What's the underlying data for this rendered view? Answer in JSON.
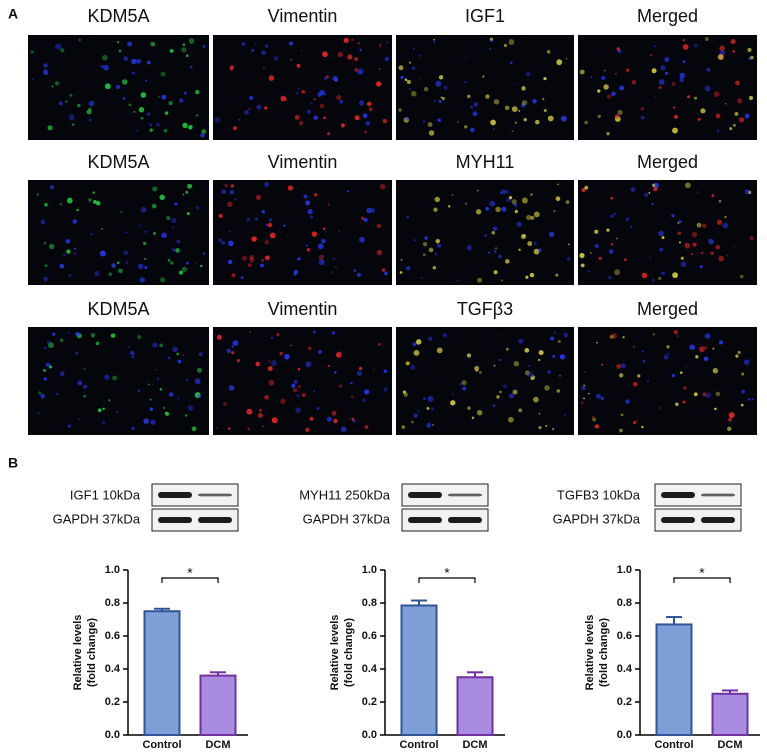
{
  "panel_labels": [
    "A",
    "B"
  ],
  "immunofluorescence": {
    "rows": [
      [
        "KDM5A",
        "Vimentin",
        "IGF1",
        "Merged"
      ],
      [
        "KDM5A",
        "Vimentin",
        "MYH11",
        "Merged"
      ],
      [
        "KDM5A",
        "Vimentin",
        "TGFβ3",
        "Merged"
      ]
    ]
  },
  "blots": [
    {
      "target": "IGF1 10kDa",
      "control": "GAPDH 37kDa"
    },
    {
      "target": "MYH11 250kDa",
      "control": "GAPDH 37kDa"
    },
    {
      "target": "TGFB3 10kDa",
      "control": "GAPDH  37kDa"
    }
  ],
  "chart_data": [
    {
      "type": "bar",
      "ylabel": [
        "Relative levels",
        "(fold change)"
      ],
      "categories": [
        "Control",
        "DCM"
      ],
      "values": [
        0.75,
        0.36
      ],
      "errors": [
        0.015,
        0.02
      ],
      "colors": [
        "#7f9fd9",
        "#a98be0"
      ],
      "edge_colors": [
        "#2f5597",
        "#7030a0"
      ],
      "ylim": [
        0,
        1
      ],
      "yticks": [
        {
          "value": 0,
          "label": "0.0"
        },
        {
          "value": 0.2,
          "label": "0.2"
        },
        {
          "value": 0.4,
          "label": "0.4"
        },
        {
          "value": 0.6,
          "label": "0.6"
        },
        {
          "value": 0.8,
          "label": "0.8"
        },
        {
          "value": 1,
          "label": "1.0"
        }
      ],
      "annotation": "*"
    },
    {
      "type": "bar",
      "ylabel": [
        "Relative levels",
        "(fold change)"
      ],
      "categories": [
        "Control",
        "DCM"
      ],
      "values": [
        0.785,
        0.35
      ],
      "errors": [
        0.03,
        0.03
      ],
      "colors": [
        "#7f9fd9",
        "#a98be0"
      ],
      "edge_colors": [
        "#2f5597",
        "#7030a0"
      ],
      "ylim": [
        0,
        1
      ],
      "yticks": [
        {
          "value": 0,
          "label": "0.0"
        },
        {
          "value": 0.2,
          "label": "0.2"
        },
        {
          "value": 0.4,
          "label": "0.4"
        },
        {
          "value": 0.6,
          "label": "0.6"
        },
        {
          "value": 0.8,
          "label": "0.8"
        },
        {
          "value": 1,
          "label": "1.0"
        }
      ],
      "annotation": "*"
    },
    {
      "type": "bar",
      "ylabel": [
        "Relative levels",
        "(fold change)"
      ],
      "categories": [
        "Control",
        "DCM"
      ],
      "values": [
        0.67,
        0.25
      ],
      "errors": [
        0.045,
        0.02
      ],
      "colors": [
        "#7f9fd9",
        "#a98be0"
      ],
      "edge_colors": [
        "#2f5597",
        "#7030a0"
      ],
      "ylim": [
        0,
        1
      ],
      "yticks": [
        {
          "value": 0,
          "label": "0.0"
        },
        {
          "value": 0.2,
          "label": "0.2"
        },
        {
          "value": 0.4,
          "label": "0.4"
        },
        {
          "value": 0.6,
          "label": "0.6"
        },
        {
          "value": 0.8,
          "label": "0.8"
        },
        {
          "value": 1,
          "label": "1.0"
        }
      ],
      "annotation": "*"
    }
  ]
}
